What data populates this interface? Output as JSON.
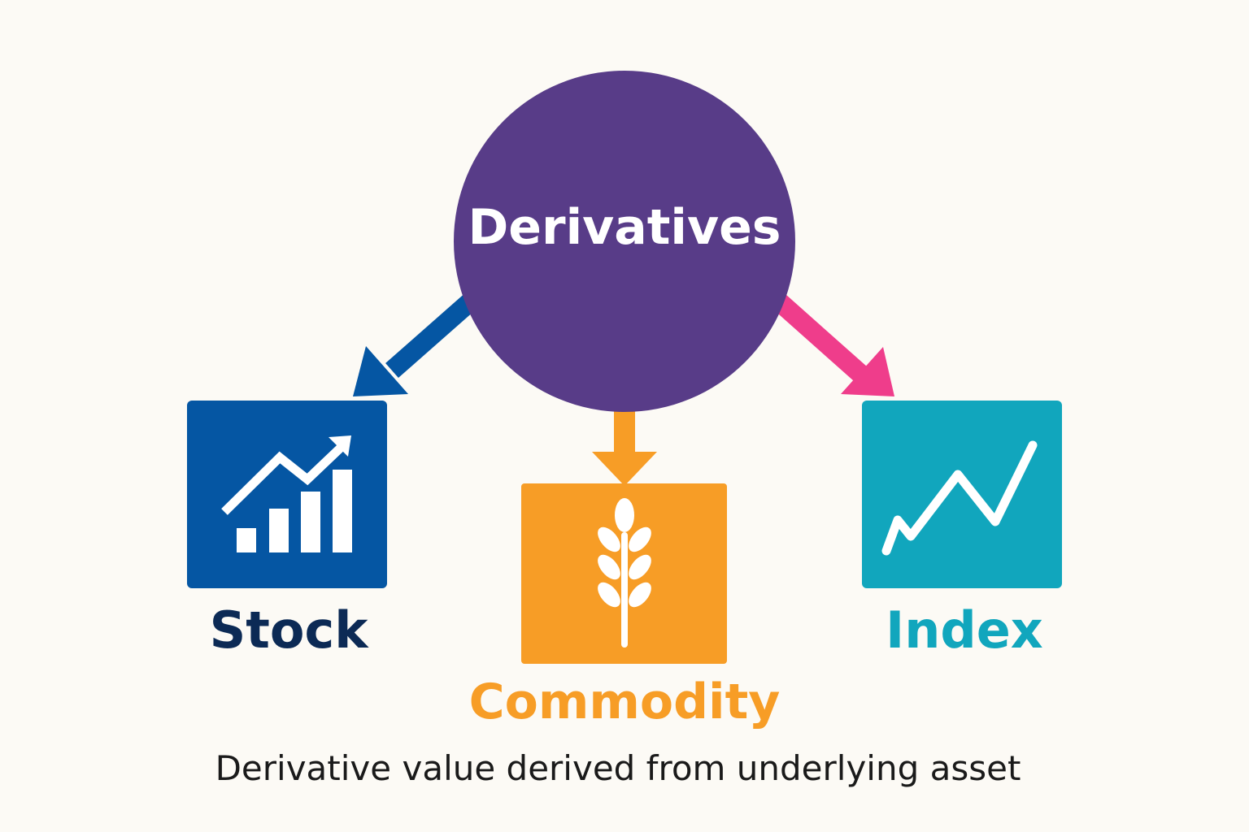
{
  "diagram": {
    "center": {
      "label": "Derivatives",
      "color": "#583c88",
      "text_color": "#ffffff"
    },
    "nodes": [
      {
        "key": "stock",
        "label": "Stock",
        "box_color": "#0556a3",
        "label_color": "#0c2a55",
        "arrow_color": "#0556a3",
        "icon": "stock-bar-chart-icon"
      },
      {
        "key": "commodity",
        "label": "Commodity",
        "box_color": "#f79d26",
        "label_color": "#f79d26",
        "arrow_color": "#f79d26",
        "icon": "wheat-icon"
      },
      {
        "key": "index",
        "label": "Index",
        "box_color": "#11a6bd",
        "label_color": "#11a6bd",
        "arrow_color": "#ef3d8b",
        "icon": "line-chart-icon"
      }
    ],
    "caption": "Derivative value derived from underlying asset",
    "caption_color": "#1a1a1a",
    "background": "#fcfaf5"
  }
}
